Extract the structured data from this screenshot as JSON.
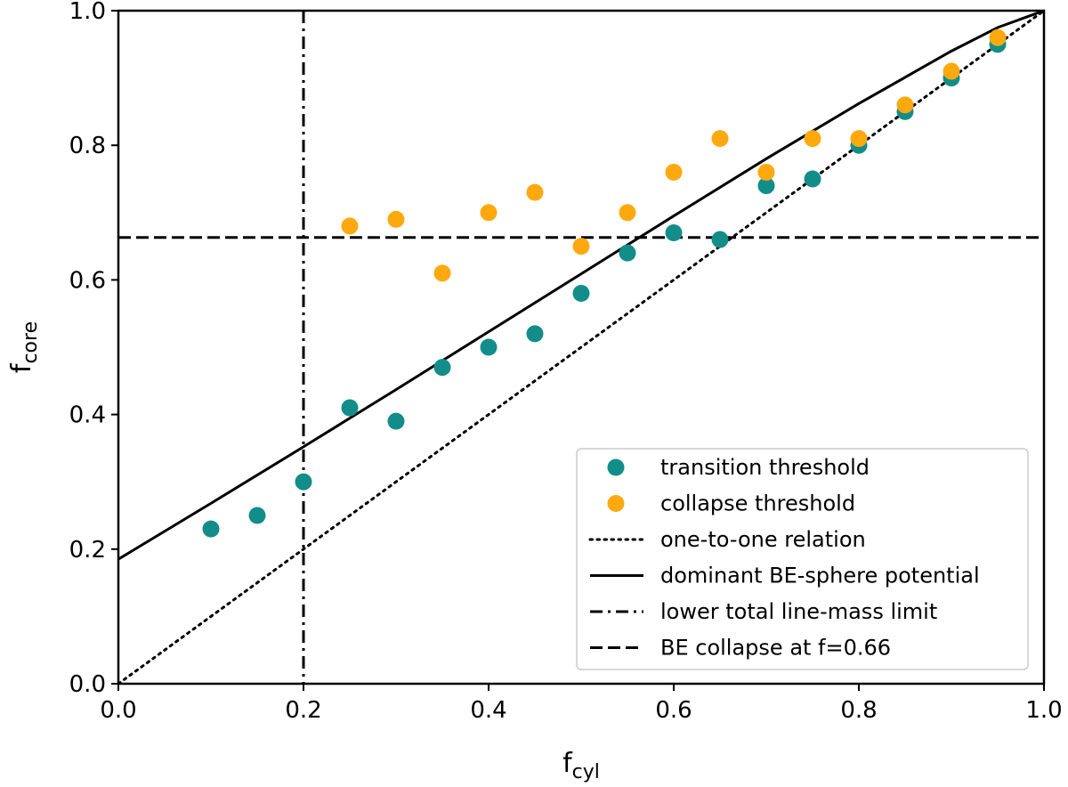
{
  "chart_data": {
    "type": "scatter",
    "title": "",
    "xlabel": {
      "base": "f",
      "sub": "cyl"
    },
    "ylabel": {
      "base": "f",
      "sub": "core"
    },
    "xlim": [
      0.0,
      1.0
    ],
    "ylim": [
      0.0,
      1.0
    ],
    "xticks": [
      "0.0",
      "0.2",
      "0.4",
      "0.6",
      "0.8",
      "1.0"
    ],
    "yticks": [
      "0.0",
      "0.2",
      "0.4",
      "0.6",
      "0.8",
      "1.0"
    ],
    "grid": false,
    "legend_position": "lower-right",
    "colors": {
      "transition": "#138d8a",
      "collapse": "#ffa90f",
      "line": "#000000"
    },
    "series": [
      {
        "name": "transition threshold",
        "kind": "points",
        "x": [
          0.1,
          0.15,
          0.2,
          0.25,
          0.3,
          0.35,
          0.4,
          0.45,
          0.5,
          0.55,
          0.6,
          0.65,
          0.7,
          0.75,
          0.8,
          0.85,
          0.9,
          0.95
        ],
        "y": [
          0.23,
          0.25,
          0.3,
          0.41,
          0.39,
          0.47,
          0.5,
          0.52,
          0.58,
          0.64,
          0.67,
          0.66,
          0.74,
          0.75,
          0.8,
          0.85,
          0.9,
          0.95
        ]
      },
      {
        "name": "collapse threshold",
        "kind": "points",
        "x": [
          0.25,
          0.3,
          0.35,
          0.4,
          0.45,
          0.5,
          0.55,
          0.6,
          0.65,
          0.7,
          0.75,
          0.8,
          0.85,
          0.9,
          0.95
        ],
        "y": [
          0.68,
          0.69,
          0.61,
          0.7,
          0.73,
          0.65,
          0.7,
          0.76,
          0.81,
          0.76,
          0.81,
          0.81,
          0.86,
          0.91,
          0.96
        ]
      },
      {
        "name": "one-to-one relation",
        "kind": "line",
        "style": "dotted",
        "x": [
          0.0,
          1.0
        ],
        "y": [
          0.0,
          1.0
        ]
      },
      {
        "name": "dominant BE-sphere potential",
        "kind": "line",
        "style": "solid",
        "x": [
          0.0,
          0.1,
          0.2,
          0.3,
          0.4,
          0.5,
          0.6,
          0.7,
          0.8,
          0.9,
          0.95,
          1.0
        ],
        "y": [
          0.185,
          0.268,
          0.352,
          0.437,
          0.523,
          0.609,
          0.695,
          0.78,
          0.862,
          0.94,
          0.975,
          1.0
        ]
      },
      {
        "name": "lower total line-mass limit",
        "kind": "vline",
        "style": "dashdot",
        "x": 0.2
      },
      {
        "name": "BE collapse at f=0.66",
        "kind": "hline",
        "style": "dashed",
        "y": 0.663
      }
    ]
  }
}
